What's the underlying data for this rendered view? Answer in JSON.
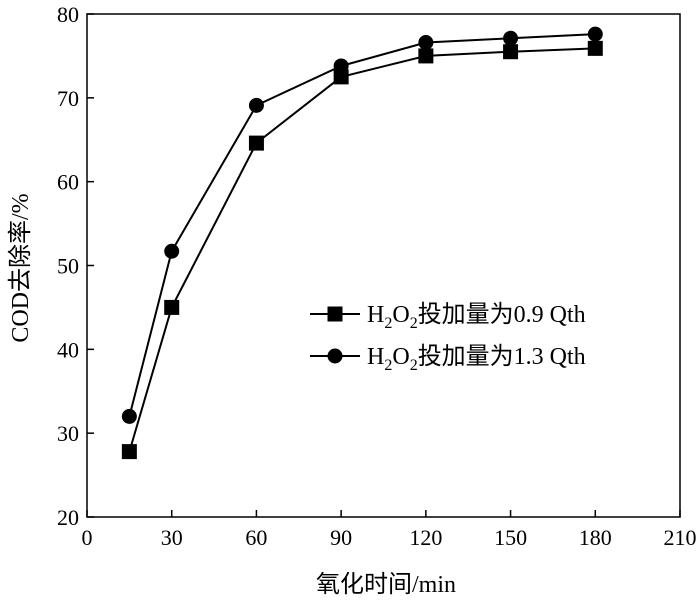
{
  "chart_data": {
    "type": "line",
    "xlabel": "氧化时间/min",
    "ylabel": "COD去除率/%",
    "xlim": [
      0,
      210
    ],
    "ylim": [
      20,
      80
    ],
    "xticks": [
      0,
      30,
      60,
      90,
      120,
      150,
      180,
      210
    ],
    "yticks": [
      20,
      30,
      40,
      50,
      60,
      70,
      80
    ],
    "grid": false,
    "legend_position": "center-right",
    "x": [
      15,
      30,
      60,
      90,
      120,
      150,
      180
    ],
    "series": [
      {
        "legend": {
          "base1": "H",
          "sub1": "2",
          "base2": "O",
          "sub2": "2",
          "rest": "投加量为0.9 Qth"
        },
        "marker": "square",
        "values": [
          27.8,
          45.0,
          64.6,
          72.5,
          75.0,
          75.5,
          75.9
        ]
      },
      {
        "legend": {
          "base1": "H",
          "sub1": "2",
          "base2": "O",
          "sub2": "2",
          "rest": "投加量为1.3 Qth"
        },
        "marker": "circle",
        "values": [
          32.0,
          51.7,
          69.1,
          73.8,
          76.6,
          77.1,
          77.6
        ]
      }
    ]
  }
}
